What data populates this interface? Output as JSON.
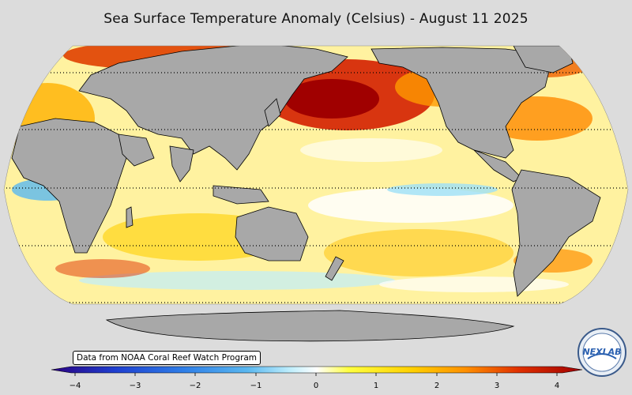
{
  "title": "Sea Surface Temperature Anomaly (Celsius) - August 11 2025",
  "source_note": "Data from NOAA Coral Reef Watch Program",
  "colorbar": {
    "min": -4,
    "max": 4,
    "ticks": [
      "−4",
      "−3",
      "−2",
      "−1",
      "0",
      "1",
      "2",
      "3",
      "4"
    ],
    "colors": [
      "#2a0080",
      "#1f3fd0",
      "#2f7fe8",
      "#5ab8f0",
      "#9ee0f8",
      "#ffffff",
      "#ffff40",
      "#ffd000",
      "#ff9000",
      "#e03000",
      "#a00000"
    ]
  },
  "map": {
    "projection": "robinson",
    "ocean_base_color": "#fff6a0",
    "land_color": "#a8a8a8",
    "background_color": "#dcdcdc",
    "gridline_style": "dotted"
  },
  "logo": {
    "text": "NEXLAB"
  }
}
